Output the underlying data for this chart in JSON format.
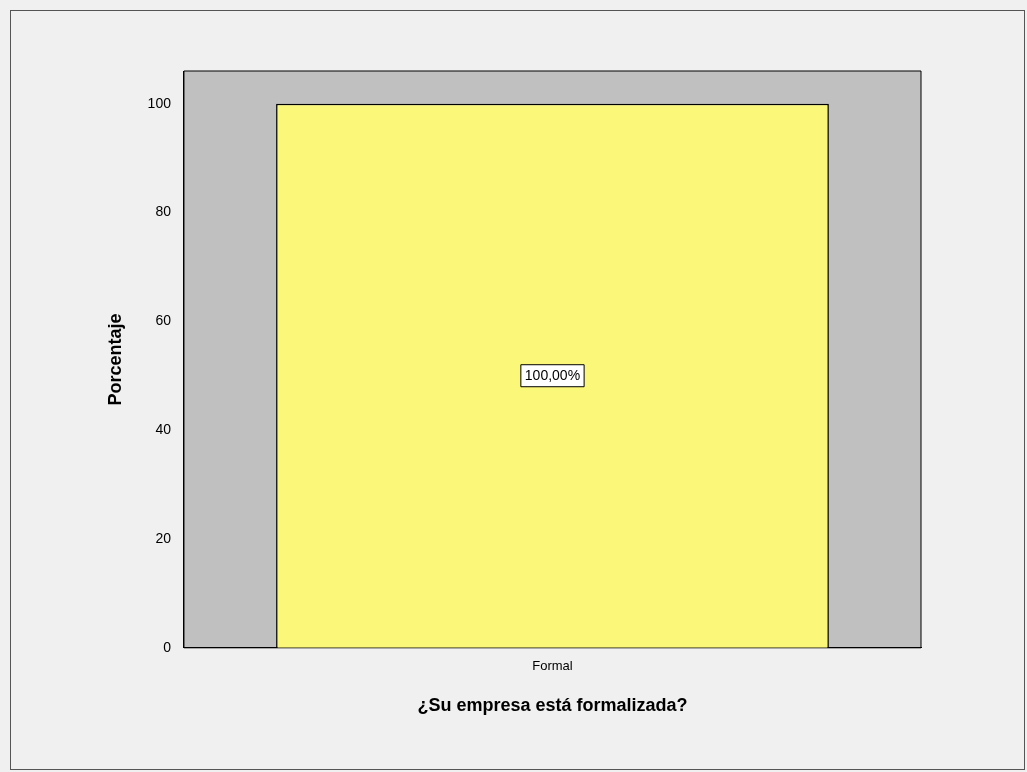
{
  "chart_data": {
    "type": "bar",
    "xlabel": "¿Su empresa está formalizada?",
    "ylabel": "Porcentaje",
    "categories": [
      "Formal"
    ],
    "values": [
      100
    ],
    "color": "#fbf778",
    "value_labels": [
      "100,00%"
    ],
    "ylim": [
      0,
      106
    ],
    "yticks": [
      0,
      20,
      40,
      60,
      80,
      100
    ],
    "grid": false,
    "legend": false
  }
}
